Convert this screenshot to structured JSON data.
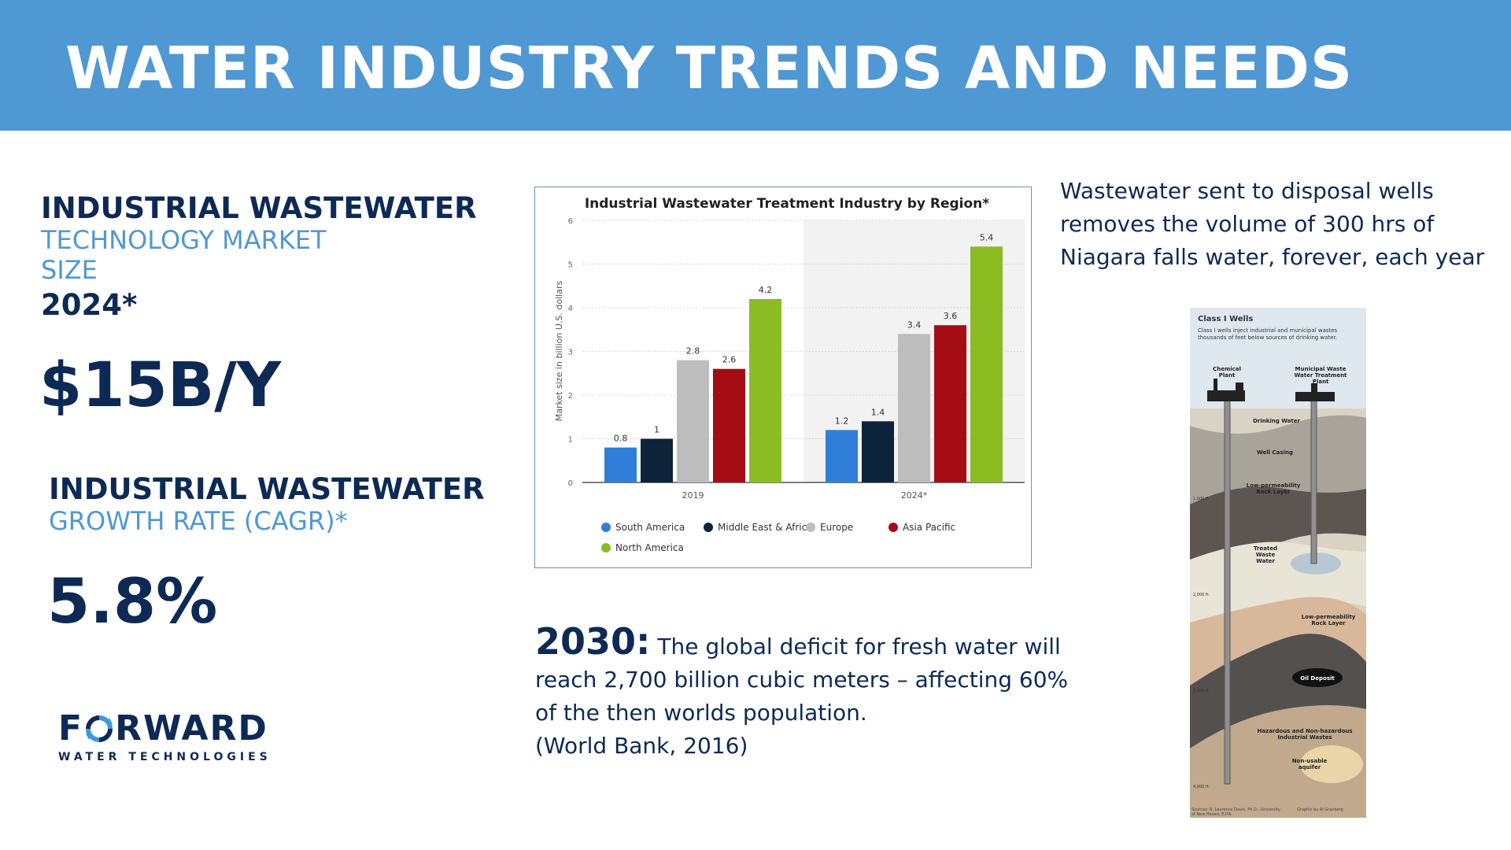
{
  "header": {
    "title": "WATER INDUSTRY TRENDS AND NEEDS"
  },
  "market": {
    "heading": "INDUSTRIAL WASTEWATER",
    "sub_line1": "TECHNOLOGY MARKET",
    "sub_line2": "SIZE",
    "year": "2024*",
    "value": "$15B/Y"
  },
  "growth": {
    "heading": "INDUSTRIAL WASTEWATER",
    "sub": "GROWTH RATE (CAGR)*",
    "value": "5.8%"
  },
  "logo": {
    "word_before": "F",
    "word_after": "RWARD",
    "tagline": "WATER TECHNOLOGIES"
  },
  "chart_data": {
    "type": "bar",
    "title": "Industrial Wastewater Treatment Industry by Region*",
    "ylabel": "Market size in billion U.S. dollars",
    "xlabel": "",
    "categories": [
      "2019",
      "2024*"
    ],
    "ylim": [
      0,
      6
    ],
    "yticks": [
      "0",
      "1",
      "2",
      "3",
      "4",
      "5",
      "6"
    ],
    "series": [
      {
        "name": "South America",
        "color": "#2f7ed8",
        "values": [
          0.8,
          1.2
        ],
        "labels": [
          "0.8",
          "1.2"
        ]
      },
      {
        "name": "Middle East & Africa",
        "color": "#0d233a",
        "values": [
          1,
          1.4
        ],
        "labels": [
          "1",
          "1.4"
        ]
      },
      {
        "name": "Europe",
        "color": "#bdbdbd",
        "values": [
          2.8,
          3.4
        ],
        "labels": [
          "2.8",
          "3.4"
        ]
      },
      {
        "name": "Asia Pacific",
        "color": "#a50d14",
        "values": [
          2.6,
          3.6
        ],
        "labels": [
          "2.6",
          "3.6"
        ]
      },
      {
        "name": "North America",
        "color": "#8bbc21",
        "values": [
          4.2,
          5.4
        ],
        "labels": [
          "4.2",
          "5.4"
        ]
      }
    ],
    "grid": true,
    "legend": "bottom"
  },
  "wells_note": {
    "text": "Wastewater sent to disposal wells removes the volume of 300 hrs of Niagara falls water, forever, each year"
  },
  "deficit": {
    "year": "2030:",
    "text": " The global deficit for fresh water will reach 2,700 billion cubic meters – affecting 60% of the then worlds population.",
    "source": "(World Bank, 2016)"
  },
  "illustration": {
    "title": "Class I Wells",
    "desc": "Class I wells inject industrial and municipal wastes thousands of feet below sources of drinking water.",
    "chemical_plant": "Chemical Plant",
    "municipal_plant": "Municipal Waste Water Treatment Plant",
    "drinking_water": "Drinking Water",
    "well_casing": "Well Casing",
    "low_perm_1": "Low-permeability Rock Layer",
    "treated_water": "Treated Waste Water",
    "low_perm_2": "Low-permeability Rock Layer",
    "oil_deposit": "Oil Deposit",
    "hazardous": "Hazardous and Non-hazardous Industrial Wastes",
    "non_usable": "Non-usable aquifer",
    "depth_1000": "1,000 ft.",
    "depth_2000": "2,000 ft.",
    "depth_3000": "3,000 ft.",
    "depth_4000": "4,000 ft.",
    "credit_left": "Sources: R. Laurence Davis, Ph.D., University of New Haven; E.P.A.",
    "credit_right": "Graphic by Al Granberg"
  }
}
